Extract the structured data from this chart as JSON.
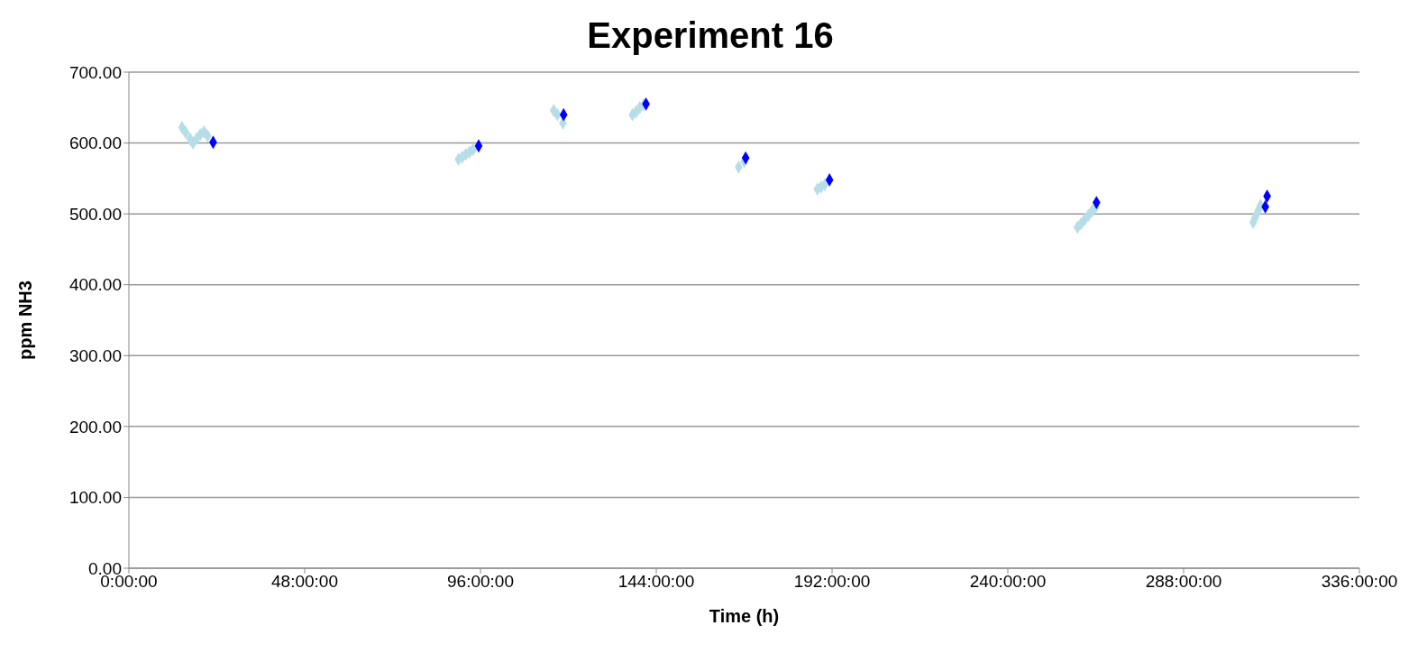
{
  "chart_data": {
    "type": "scatter",
    "title": "Experiment 16",
    "xlabel": "Time (h)",
    "ylabel": "ppm NH3",
    "marker": "diamond",
    "grid": "y",
    "xlim": [
      0,
      336
    ],
    "xticks": [
      {
        "value": 0,
        "label": "0:00:00"
      },
      {
        "value": 48,
        "label": "48:00:00"
      },
      {
        "value": 96,
        "label": "96:00:00"
      },
      {
        "value": 144,
        "label": "144:00:00"
      },
      {
        "value": 192,
        "label": "192:00:00"
      },
      {
        "value": 240,
        "label": "240:00:00"
      },
      {
        "value": 288,
        "label": "288:00:00"
      },
      {
        "value": 336,
        "label": "336:00:00"
      }
    ],
    "ylim": [
      0,
      700
    ],
    "yticks": [
      {
        "value": 0,
        "label": "0.00"
      },
      {
        "value": 100,
        "label": "100.00"
      },
      {
        "value": 200,
        "label": "200.00"
      },
      {
        "value": 300,
        "label": "300.00"
      },
      {
        "value": 400,
        "label": "400.00"
      },
      {
        "value": 500,
        "label": "500.00"
      },
      {
        "value": 600,
        "label": "600.00"
      },
      {
        "value": 700,
        "label": "700.00"
      }
    ],
    "series": [
      {
        "color": "#b7dee8",
        "x": [
          14.5,
          15.5,
          16.7,
          17.5,
          18.5,
          19.5,
          20.5,
          21.5,
          90,
          91,
          92,
          93,
          94,
          116,
          117,
          118.5,
          137.5,
          138.5,
          139.5,
          140.5,
          166.5,
          168,
          188,
          189,
          190,
          259,
          260,
          261,
          262,
          263,
          264,
          307,
          307.5,
          308,
          308.5,
          309
        ],
        "values": [
          622,
          615,
          606,
          600,
          606,
          612,
          616,
          610,
          577,
          580,
          584,
          587,
          591,
          646,
          640,
          628,
          640,
          644,
          650,
          654,
          566,
          574,
          535,
          538,
          541,
          481,
          486,
          492,
          498,
          504,
          510,
          488,
          494,
          500,
          506,
          512
        ]
      },
      {
        "color": "#0000ff",
        "x": [
          23,
          95.5,
          118.7,
          141.2,
          168.4,
          191.3,
          264.2,
          310.3,
          310.8
        ],
        "values": [
          601,
          596,
          640,
          655,
          579,
          548,
          516,
          510,
          525
        ]
      }
    ]
  }
}
